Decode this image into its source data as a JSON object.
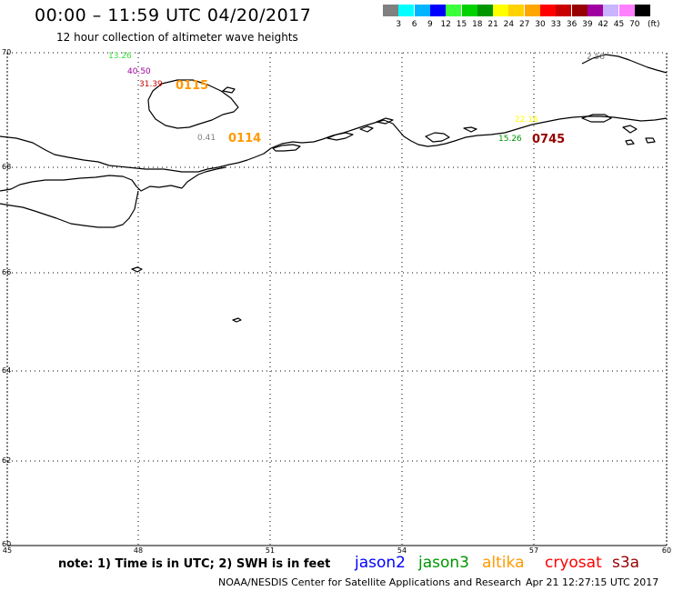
{
  "header": {
    "title": "00:00 – 11:59 UTC 04/20/2017",
    "subtitle": "12 hour collection of altimeter wave heights"
  },
  "color_scale": {
    "colors": [
      "#808080",
      "#00ffff",
      "#00b4ff",
      "#0000ff",
      "#3cff3c",
      "#00d200",
      "#009600",
      "#ffff00",
      "#ffd200",
      "#ffa500",
      "#ff0000",
      "#c80000",
      "#960000",
      "#a000a0",
      "#c8b4ff",
      "#ff80ff",
      "#000000"
    ],
    "labels": [
      "3",
      "6",
      "9",
      "12",
      "15",
      "18",
      "21",
      "24",
      "27",
      "30",
      "33",
      "36",
      "39",
      "42",
      "45",
      "70"
    ],
    "unit": "(ft)"
  },
  "map": {
    "lat_labels": [
      "70",
      "68",
      "66",
      "64",
      "62",
      "60"
    ],
    "lon_labels": [
      "45",
      "48",
      "51",
      "54",
      "57",
      "60"
    ],
    "observations": [
      {
        "value": "13.26",
        "color": "#3cdc3c"
      },
      {
        "value": "40.50",
        "color": "#a000a0"
      },
      {
        "value": "31.39",
        "color": "#c80000"
      },
      {
        "value": "0.41",
        "color": "#808080"
      },
      {
        "value": "2.58",
        "color": "#808080"
      },
      {
        "value": "22.16",
        "color": "#ffff00"
      },
      {
        "value": "15.26",
        "color": "#009600"
      }
    ],
    "times": [
      {
        "value": "0115",
        "color": "#ff9900"
      },
      {
        "value": "0114",
        "color": "#ff9900"
      },
      {
        "value": "0745",
        "color": "#960000"
      }
    ]
  },
  "footer": {
    "note": "note: 1) Time is in UTC; 2) SWH is in feet",
    "satellites": [
      {
        "name": "jason2",
        "color": "#0000ff"
      },
      {
        "name": "jason3",
        "color": "#009600"
      },
      {
        "name": "altika",
        "color": "#ff9900"
      },
      {
        "name": "cryosat",
        "color": "#ff0000"
      },
      {
        "name": "s3a",
        "color": "#960000"
      }
    ],
    "credit": "NOAA/NESDIS Center for Satellite Applications and Research",
    "timestamp": "Apr 21 12:27:15 UTC 2017"
  }
}
